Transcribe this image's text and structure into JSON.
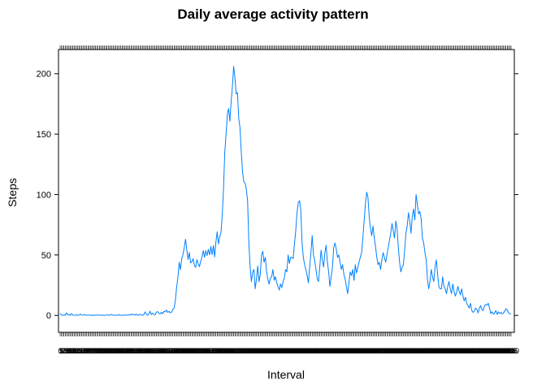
{
  "chart_data": {
    "type": "line",
    "title": "Daily average activity pattern",
    "xlabel": "Interval",
    "ylabel": "Steps",
    "ylim": [
      -14,
      220
    ],
    "yticks": [
      0,
      50,
      100,
      150,
      200
    ],
    "grid": false,
    "legend": "none",
    "line_color": "#0080ff",
    "interval_step_minutes": 5,
    "series": [
      {
        "values": [
          1.7,
          0.3,
          0.1,
          0.2,
          0.1,
          2.1,
          0.5,
          0.9,
          0,
          1.5,
          0.3,
          0.1,
          0,
          0.6,
          0.1,
          0.3,
          1.1,
          0.3,
          0.2,
          0.6,
          0.3,
          0,
          0.2,
          0.4,
          0,
          0.1,
          0,
          0.3,
          0,
          0.5,
          0.2,
          0.1,
          0.3,
          0.1,
          0.2,
          0,
          0.3,
          0.3,
          0.2,
          0.1,
          0.8,
          0.4,
          0.1,
          0.2,
          0,
          0.3,
          0.4,
          0.3,
          0,
          0.2,
          0.3,
          0,
          0.5,
          0.2,
          0.3,
          0.7,
          0.3,
          1.2,
          0.6,
          0.2,
          1.1,
          0.2,
          0.2,
          0.9,
          0.4,
          0.1,
          0.3,
          2.9,
          1.3,
          0.1,
          1.1,
          3.5,
          0.7,
          1.9,
          0.9,
          0.4,
          2.7,
          3.1,
          1.6,
          1.2,
          2.6,
          1.4,
          3.4,
          2.9,
          4.5,
          2.5,
          3.3,
          2.2,
          2.8,
          5.1,
          5.9,
          12.8,
          23.5,
          31.7,
          44.0,
          37.8,
          46.8,
          50.4,
          56.2,
          63.0,
          54.5,
          46.2,
          52.1,
          43.4,
          44.4,
          46.9,
          41.3,
          39.7,
          46.2,
          42.8,
          40.3,
          45.0,
          48.2,
          53.6,
          48.1,
          53.5,
          49.5,
          54.7,
          50.2,
          57.0,
          50.3,
          57.8,
          48.4,
          61.0,
          69.2,
          59.1,
          65.5,
          68.4,
          83.0,
          105.0,
          135.5,
          149.8,
          166.2,
          171.2,
          160.7,
          176.7,
          189.1,
          206.2,
          196.8,
          183.3,
          184.4,
          163.0,
          155.4,
          135.6,
          119.0,
          110.8,
          109.5,
          104.5,
          95.0,
          60.0,
          40.0,
          28.0,
          36.0,
          38.0,
          22.0,
          30.0,
          41.0,
          28.0,
          34.0,
          50.0,
          53.0,
          44.0,
          48.0,
          36.0,
          30.0,
          26.0,
          31.0,
          32.0,
          38.0,
          29.0,
          32.0,
          27.0,
          24.0,
          21.0,
          26.0,
          23.0,
          28.0,
          31.0,
          38.0,
          36.0,
          50.0,
          43.0,
          48.0,
          48.0,
          47.0,
          59.0,
          70.0,
          85.0,
          93.0,
          95.0,
          87.0,
          60.0,
          48.0,
          42.0,
          38.0,
          33.0,
          27.0,
          40.0,
          52.0,
          66.0,
          50.0,
          45.0,
          38.0,
          30.0,
          28.0,
          40.0,
          54.0,
          46.0,
          40.0,
          52.0,
          58.0,
          44.0,
          36.0,
          24.0,
          32.0,
          40.0,
          56.0,
          60.0,
          55.0,
          48.0,
          50.0,
          44.0,
          38.0,
          42.0,
          34.0,
          30.0,
          24.0,
          18.0,
          27.0,
          36.0,
          33.0,
          38.0,
          29.0,
          42.0,
          35.0,
          40.0,
          44.0,
          48.0,
          52.0,
          64.0,
          78.0,
          92.0,
          102.0,
          98.0,
          82.0,
          72.0,
          66.0,
          74.0,
          64.0,
          57.0,
          48.0,
          42.0,
          44.0,
          38.0,
          46.0,
          52.0,
          48.0,
          44.0,
          50.0,
          56.0,
          62.0,
          68.0,
          76.0,
          70.0,
          64.0,
          78.0,
          72.0,
          56.0,
          44.0,
          36.0,
          40.0,
          42.0,
          54.0,
          68.0,
          74.0,
          85.0,
          78.0,
          68.0,
          82.0,
          88.0,
          79.0,
          100.0,
          92.0,
          84.0,
          86.0,
          80.0,
          64.0,
          60.0,
          52.0,
          46.0,
          30.0,
          22.0,
          28.0,
          38.0,
          32.0,
          28.0,
          40.0,
          46.0,
          34.0,
          24.0,
          22.0,
          22.0,
          32.0,
          24.0,
          22.0,
          18.0,
          24.0,
          28.0,
          22.0,
          18.0,
          26.0,
          20.0,
          16.0,
          19.0,
          24.0,
          20.0,
          17.0,
          22.0,
          16.0,
          12.0,
          15.0,
          10.0,
          8.0,
          6.0,
          10.0,
          4.0,
          2.5,
          3.5,
          6.0,
          5.0,
          2.0,
          6.0,
          8.0,
          5.0,
          4.0,
          8.0,
          9.0,
          8.5,
          10.0,
          6.0,
          1.5,
          3.0,
          1.0,
          2.0,
          4.0,
          0.8,
          3.0,
          1.5,
          2.5,
          1.2,
          2.0,
          3.5,
          5.5,
          4.5,
          2.0,
          1.5,
          1.0
        ]
      }
    ]
  }
}
